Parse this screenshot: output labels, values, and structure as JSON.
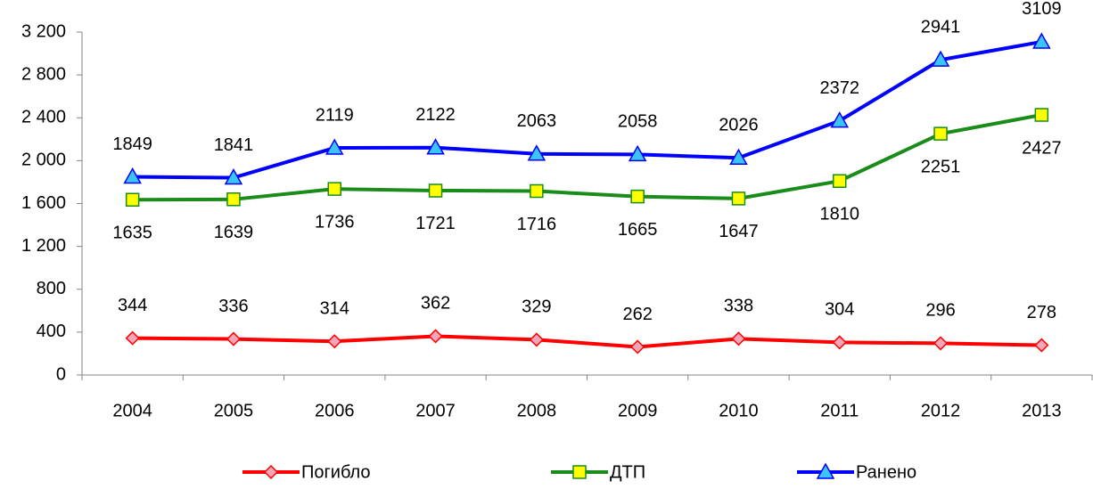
{
  "chart_data": {
    "type": "line",
    "categories": [
      "2004",
      "2005",
      "2006",
      "2007",
      "2008",
      "2009",
      "2010",
      "2011",
      "2012",
      "2013"
    ],
    "series": [
      {
        "name": "Погибло",
        "color": "#ff0000",
        "marker": "diamond",
        "marker_color": "#f4a6b8",
        "values": [
          344,
          336,
          314,
          362,
          329,
          262,
          338,
          304,
          296,
          278
        ]
      },
      {
        "name": "ДТП",
        "color": "#1a8c1a",
        "marker": "square",
        "marker_color": "#ffff00",
        "values": [
          1635,
          1639,
          1736,
          1721,
          1716,
          1665,
          1647,
          1810,
          2251,
          2427
        ]
      },
      {
        "name": "Ранено",
        "color": "#0000ff",
        "marker": "triangle",
        "marker_color": "#3cc4f4",
        "values": [
          1849,
          1841,
          2119,
          2122,
          2063,
          2058,
          2026,
          2372,
          2941,
          3109
        ]
      }
    ],
    "ylim": [
      0,
      3200
    ],
    "yticks": [
      0,
      400,
      800,
      {
        "value": 1200,
        "label": "1 200"
      },
      {
        "value": 1600,
        "label": "1 600"
      },
      {
        "value": 2000,
        "label": "2 000"
      },
      {
        "value": 2400,
        "label": "2 400"
      },
      {
        "value": 2800,
        "label": "2 800"
      },
      {
        "value": 3200,
        "label": "3 200"
      }
    ],
    "grid": false,
    "legend": "bottom",
    "data_labels": true
  }
}
